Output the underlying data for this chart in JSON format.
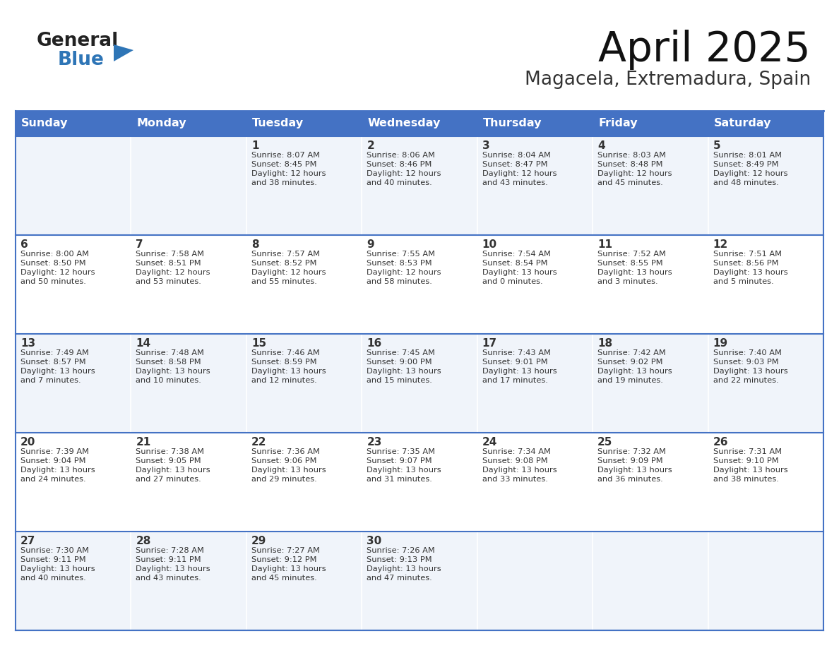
{
  "title": "April 2025",
  "subtitle": "Magacela, Extremadura, Spain",
  "header_bg": "#4472C4",
  "header_text_color": "#FFFFFF",
  "cell_bg_odd": "#F0F4FA",
  "cell_bg_even": "#FFFFFF",
  "border_color": "#4472C4",
  "row_line_color": "#4472C4",
  "text_color": "#333333",
  "logo_general_color": "#222222",
  "logo_blue_color": "#2E75B6",
  "logo_triangle_color": "#2E75B6",
  "days_of_week": [
    "Sunday",
    "Monday",
    "Tuesday",
    "Wednesday",
    "Thursday",
    "Friday",
    "Saturday"
  ],
  "calendar_data": [
    [
      {
        "day": "",
        "sunrise": "",
        "sunset": "",
        "daylight1": "",
        "daylight2": ""
      },
      {
        "day": "",
        "sunrise": "",
        "sunset": "",
        "daylight1": "",
        "daylight2": ""
      },
      {
        "day": "1",
        "sunrise": "Sunrise: 8:07 AM",
        "sunset": "Sunset: 8:45 PM",
        "daylight1": "Daylight: 12 hours",
        "daylight2": "and 38 minutes."
      },
      {
        "day": "2",
        "sunrise": "Sunrise: 8:06 AM",
        "sunset": "Sunset: 8:46 PM",
        "daylight1": "Daylight: 12 hours",
        "daylight2": "and 40 minutes."
      },
      {
        "day": "3",
        "sunrise": "Sunrise: 8:04 AM",
        "sunset": "Sunset: 8:47 PM",
        "daylight1": "Daylight: 12 hours",
        "daylight2": "and 43 minutes."
      },
      {
        "day": "4",
        "sunrise": "Sunrise: 8:03 AM",
        "sunset": "Sunset: 8:48 PM",
        "daylight1": "Daylight: 12 hours",
        "daylight2": "and 45 minutes."
      },
      {
        "day": "5",
        "sunrise": "Sunrise: 8:01 AM",
        "sunset": "Sunset: 8:49 PM",
        "daylight1": "Daylight: 12 hours",
        "daylight2": "and 48 minutes."
      }
    ],
    [
      {
        "day": "6",
        "sunrise": "Sunrise: 8:00 AM",
        "sunset": "Sunset: 8:50 PM",
        "daylight1": "Daylight: 12 hours",
        "daylight2": "and 50 minutes."
      },
      {
        "day": "7",
        "sunrise": "Sunrise: 7:58 AM",
        "sunset": "Sunset: 8:51 PM",
        "daylight1": "Daylight: 12 hours",
        "daylight2": "and 53 minutes."
      },
      {
        "day": "8",
        "sunrise": "Sunrise: 7:57 AM",
        "sunset": "Sunset: 8:52 PM",
        "daylight1": "Daylight: 12 hours",
        "daylight2": "and 55 minutes."
      },
      {
        "day": "9",
        "sunrise": "Sunrise: 7:55 AM",
        "sunset": "Sunset: 8:53 PM",
        "daylight1": "Daylight: 12 hours",
        "daylight2": "and 58 minutes."
      },
      {
        "day": "10",
        "sunrise": "Sunrise: 7:54 AM",
        "sunset": "Sunset: 8:54 PM",
        "daylight1": "Daylight: 13 hours",
        "daylight2": "and 0 minutes."
      },
      {
        "day": "11",
        "sunrise": "Sunrise: 7:52 AM",
        "sunset": "Sunset: 8:55 PM",
        "daylight1": "Daylight: 13 hours",
        "daylight2": "and 3 minutes."
      },
      {
        "day": "12",
        "sunrise": "Sunrise: 7:51 AM",
        "sunset": "Sunset: 8:56 PM",
        "daylight1": "Daylight: 13 hours",
        "daylight2": "and 5 minutes."
      }
    ],
    [
      {
        "day": "13",
        "sunrise": "Sunrise: 7:49 AM",
        "sunset": "Sunset: 8:57 PM",
        "daylight1": "Daylight: 13 hours",
        "daylight2": "and 7 minutes."
      },
      {
        "day": "14",
        "sunrise": "Sunrise: 7:48 AM",
        "sunset": "Sunset: 8:58 PM",
        "daylight1": "Daylight: 13 hours",
        "daylight2": "and 10 minutes."
      },
      {
        "day": "15",
        "sunrise": "Sunrise: 7:46 AM",
        "sunset": "Sunset: 8:59 PM",
        "daylight1": "Daylight: 13 hours",
        "daylight2": "and 12 minutes."
      },
      {
        "day": "16",
        "sunrise": "Sunrise: 7:45 AM",
        "sunset": "Sunset: 9:00 PM",
        "daylight1": "Daylight: 13 hours",
        "daylight2": "and 15 minutes."
      },
      {
        "day": "17",
        "sunrise": "Sunrise: 7:43 AM",
        "sunset": "Sunset: 9:01 PM",
        "daylight1": "Daylight: 13 hours",
        "daylight2": "and 17 minutes."
      },
      {
        "day": "18",
        "sunrise": "Sunrise: 7:42 AM",
        "sunset": "Sunset: 9:02 PM",
        "daylight1": "Daylight: 13 hours",
        "daylight2": "and 19 minutes."
      },
      {
        "day": "19",
        "sunrise": "Sunrise: 7:40 AM",
        "sunset": "Sunset: 9:03 PM",
        "daylight1": "Daylight: 13 hours",
        "daylight2": "and 22 minutes."
      }
    ],
    [
      {
        "day": "20",
        "sunrise": "Sunrise: 7:39 AM",
        "sunset": "Sunset: 9:04 PM",
        "daylight1": "Daylight: 13 hours",
        "daylight2": "and 24 minutes."
      },
      {
        "day": "21",
        "sunrise": "Sunrise: 7:38 AM",
        "sunset": "Sunset: 9:05 PM",
        "daylight1": "Daylight: 13 hours",
        "daylight2": "and 27 minutes."
      },
      {
        "day": "22",
        "sunrise": "Sunrise: 7:36 AM",
        "sunset": "Sunset: 9:06 PM",
        "daylight1": "Daylight: 13 hours",
        "daylight2": "and 29 minutes."
      },
      {
        "day": "23",
        "sunrise": "Sunrise: 7:35 AM",
        "sunset": "Sunset: 9:07 PM",
        "daylight1": "Daylight: 13 hours",
        "daylight2": "and 31 minutes."
      },
      {
        "day": "24",
        "sunrise": "Sunrise: 7:34 AM",
        "sunset": "Sunset: 9:08 PM",
        "daylight1": "Daylight: 13 hours",
        "daylight2": "and 33 minutes."
      },
      {
        "day": "25",
        "sunrise": "Sunrise: 7:32 AM",
        "sunset": "Sunset: 9:09 PM",
        "daylight1": "Daylight: 13 hours",
        "daylight2": "and 36 minutes."
      },
      {
        "day": "26",
        "sunrise": "Sunrise: 7:31 AM",
        "sunset": "Sunset: 9:10 PM",
        "daylight1": "Daylight: 13 hours",
        "daylight2": "and 38 minutes."
      }
    ],
    [
      {
        "day": "27",
        "sunrise": "Sunrise: 7:30 AM",
        "sunset": "Sunset: 9:11 PM",
        "daylight1": "Daylight: 13 hours",
        "daylight2": "and 40 minutes."
      },
      {
        "day": "28",
        "sunrise": "Sunrise: 7:28 AM",
        "sunset": "Sunset: 9:11 PM",
        "daylight1": "Daylight: 13 hours",
        "daylight2": "and 43 minutes."
      },
      {
        "day": "29",
        "sunrise": "Sunrise: 7:27 AM",
        "sunset": "Sunset: 9:12 PM",
        "daylight1": "Daylight: 13 hours",
        "daylight2": "and 45 minutes."
      },
      {
        "day": "30",
        "sunrise": "Sunrise: 7:26 AM",
        "sunset": "Sunset: 9:13 PM",
        "daylight1": "Daylight: 13 hours",
        "daylight2": "and 47 minutes."
      },
      {
        "day": "",
        "sunrise": "",
        "sunset": "",
        "daylight1": "",
        "daylight2": ""
      },
      {
        "day": "",
        "sunrise": "",
        "sunset": "",
        "daylight1": "",
        "daylight2": ""
      },
      {
        "day": "",
        "sunrise": "",
        "sunset": "",
        "daylight1": "",
        "daylight2": ""
      }
    ]
  ]
}
